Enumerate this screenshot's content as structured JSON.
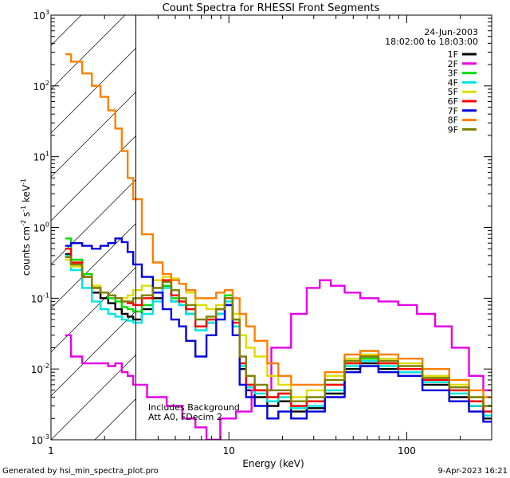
{
  "chart_data": {
    "type": "line",
    "title": "Count Spectra for RHESSI Front Segments",
    "xlabel": "Energy (keV)",
    "ylabel_base": "counts cm",
    "ylabel_sup1": "-2",
    "ylabel_mid": " s",
    "ylabel_sup2": "-1",
    "ylabel_end": " keV",
    "ylabel_sup3": "-1",
    "x_scale": "log",
    "y_scale": "log",
    "xlim": [
      1.0,
      300.0
    ],
    "ylim": [
      0.001,
      1000
    ],
    "x_ticks": [
      {
        "value": 1,
        "label": "1"
      },
      {
        "value": 10,
        "label": "10"
      },
      {
        "value": 100,
        "label": "100"
      }
    ],
    "y_ticks": [
      {
        "value": 0.001,
        "base": "10",
        "exp": "-3"
      },
      {
        "value": 0.01,
        "base": "10",
        "exp": "-2"
      },
      {
        "value": 0.1,
        "base": "10",
        "exp": "-1"
      },
      {
        "value": 1,
        "base": "10",
        "exp": "0"
      },
      {
        "value": 10,
        "base": "10",
        "exp": "1"
      },
      {
        "value": 100,
        "base": "10",
        "exp": "2"
      },
      {
        "value": 1000,
        "base": "10",
        "exp": "3"
      }
    ],
    "date": "24-Jun-2003",
    "time_range": "18:02:00 to 18:03:00",
    "attenuator_energy_keV": 3.0,
    "annotations": [
      "Includes Background",
      "Att A0, FDecim 2"
    ],
    "series": [
      {
        "name": "1F",
        "color": "#000000",
        "x": [
          1.2,
          1.4,
          1.6,
          1.8,
          2.0,
          2.2,
          2.4,
          2.6,
          2.8,
          3.0,
          3.5,
          4.0,
          4.5,
          5.0,
          5.5,
          6.0,
          7.0,
          8.0,
          9.0,
          10.0,
          11.0,
          12.0,
          13.0,
          15.0,
          18.0,
          20.0,
          25.0,
          30.0,
          40.0,
          50.0,
          60.0,
          80.0,
          100.0,
          150.0,
          200.0,
          250.0,
          290.0
        ],
        "y": [
          0.42,
          0.3,
          0.2,
          0.12,
          0.1,
          0.085,
          0.07,
          0.06,
          0.055,
          0.05,
          0.07,
          0.1,
          0.15,
          0.09,
          0.08,
          0.06,
          0.035,
          0.045,
          0.06,
          0.08,
          0.04,
          0.01,
          0.005,
          0.004,
          0.003,
          0.0035,
          0.0025,
          0.0028,
          0.0045,
          0.01,
          0.012,
          0.01,
          0.009,
          0.006,
          0.004,
          0.003,
          0.002
        ]
      },
      {
        "name": "2F",
        "color": "#e600e6",
        "x": [
          1.2,
          1.4,
          1.6,
          1.8,
          2.0,
          2.2,
          2.4,
          2.6,
          2.8,
          3.0,
          4.0,
          5.0,
          6.0,
          7.0,
          8.0,
          10.0,
          12.0,
          15.0,
          20.0,
          25.0,
          30.0,
          35.0,
          40.0,
          50.0,
          60.0,
          80.0,
          100.0,
          130.0,
          160.0,
          200.0,
          250.0,
          290.0
        ],
        "y": [
          0.03,
          0.015,
          0.012,
          0.012,
          0.012,
          0.011,
          0.012,
          0.009,
          0.008,
          0.006,
          0.004,
          0.003,
          0.002,
          0.0015,
          0.001,
          0.002,
          0.0025,
          0.005,
          0.02,
          0.06,
          0.14,
          0.18,
          0.15,
          0.12,
          0.1,
          0.09,
          0.08,
          0.06,
          0.04,
          0.02,
          0.008,
          0.005
        ]
      },
      {
        "name": "3F",
        "color": "#00dd00",
        "x": [
          1.2,
          1.4,
          1.6,
          1.8,
          2.0,
          2.2,
          2.4,
          2.6,
          2.8,
          3.0,
          3.5,
          4.0,
          4.5,
          5.0,
          5.5,
          6.0,
          7.0,
          8.0,
          9.0,
          10.0,
          11.0,
          12.0,
          13.0,
          15.0,
          18.0,
          20.0,
          25.0,
          30.0,
          40.0,
          50.0,
          60.0,
          80.0,
          100.0,
          150.0,
          200.0,
          250.0,
          290.0
        ],
        "y": [
          0.7,
          0.35,
          0.22,
          0.14,
          0.12,
          0.1,
          0.09,
          0.075,
          0.07,
          0.065,
          0.08,
          0.12,
          0.15,
          0.1,
          0.09,
          0.07,
          0.04,
          0.05,
          0.07,
          0.11,
          0.05,
          0.012,
          0.006,
          0.005,
          0.004,
          0.0045,
          0.003,
          0.0035,
          0.006,
          0.012,
          0.014,
          0.012,
          0.01,
          0.007,
          0.005,
          0.0035,
          0.0025
        ]
      },
      {
        "name": "4F",
        "color": "#00e5e5",
        "x": [
          1.2,
          1.4,
          1.6,
          1.8,
          2.0,
          2.2,
          2.4,
          2.6,
          2.8,
          3.0,
          3.5,
          4.0,
          4.5,
          5.0,
          5.5,
          6.0,
          7.0,
          8.0,
          9.0,
          10.0,
          11.0,
          12.0,
          13.0,
          15.0,
          18.0,
          20.0,
          25.0,
          30.0,
          40.0,
          50.0,
          60.0,
          80.0,
          100.0,
          150.0,
          200.0,
          250.0,
          290.0
        ],
        "y": [
          0.4,
          0.25,
          0.14,
          0.09,
          0.07,
          0.06,
          0.055,
          0.05,
          0.048,
          0.045,
          0.06,
          0.09,
          0.14,
          0.09,
          0.08,
          0.06,
          0.035,
          0.045,
          0.06,
          0.09,
          0.04,
          0.011,
          0.0055,
          0.0045,
          0.0035,
          0.004,
          0.0028,
          0.003,
          0.005,
          0.011,
          0.013,
          0.011,
          0.009,
          0.0065,
          0.0045,
          0.003,
          0.0022
        ]
      },
      {
        "name": "5F",
        "color": "#dddd00",
        "x": [
          1.2,
          1.4,
          1.6,
          1.8,
          2.0,
          2.2,
          2.4,
          2.6,
          2.8,
          3.0,
          3.5,
          4.0,
          4.5,
          5.0,
          5.5,
          6.0,
          7.0,
          8.0,
          9.0,
          10.0,
          11.0,
          12.0,
          13.0,
          15.0,
          18.0,
          20.0,
          25.0,
          30.0,
          40.0,
          50.0,
          60.0,
          80.0,
          100.0,
          150.0,
          200.0,
          250.0,
          290.0
        ],
        "y": [
          0.35,
          0.28,
          0.2,
          0.15,
          0.12,
          0.11,
          0.1,
          0.1,
          0.11,
          0.13,
          0.15,
          0.18,
          0.2,
          0.19,
          0.16,
          0.12,
          0.08,
          0.07,
          0.08,
          0.1,
          0.06,
          0.03,
          0.02,
          0.015,
          0.008,
          0.006,
          0.004,
          0.005,
          0.008,
          0.014,
          0.016,
          0.014,
          0.012,
          0.008,
          0.006,
          0.004,
          0.003
        ]
      },
      {
        "name": "6F",
        "color": "#ff0000",
        "x": [
          1.2,
          1.4,
          1.6,
          1.8,
          2.0,
          2.2,
          2.4,
          2.6,
          2.8,
          3.0,
          3.5,
          4.0,
          4.5,
          5.0,
          5.5,
          6.0,
          7.0,
          8.0,
          9.0,
          10.0,
          11.0,
          12.0,
          13.0,
          15.0,
          18.0,
          20.0,
          25.0,
          30.0,
          40.0,
          50.0,
          60.0,
          80.0,
          100.0,
          150.0,
          200.0,
          250.0,
          290.0
        ],
        "y": [
          0.5,
          0.32,
          0.2,
          0.14,
          0.12,
          0.11,
          0.1,
          0.09,
          0.085,
          0.08,
          0.1,
          0.14,
          0.18,
          0.11,
          0.09,
          0.07,
          0.04,
          0.05,
          0.07,
          0.1,
          0.045,
          0.012,
          0.006,
          0.005,
          0.004,
          0.0045,
          0.003,
          0.0035,
          0.006,
          0.012,
          0.015,
          0.012,
          0.01,
          0.007,
          0.005,
          0.0035,
          0.0025
        ]
      },
      {
        "name": "7F",
        "color": "#0000dd",
        "x": [
          1.2,
          1.4,
          1.6,
          1.8,
          2.0,
          2.2,
          2.4,
          2.6,
          2.8,
          3.0,
          3.5,
          4.0,
          4.5,
          5.0,
          5.5,
          6.0,
          7.0,
          8.0,
          9.0,
          10.0,
          11.0,
          12.0,
          13.0,
          15.0,
          18.0,
          20.0,
          25.0,
          30.0,
          40.0,
          50.0,
          60.0,
          80.0,
          100.0,
          150.0,
          200.0,
          250.0,
          290.0
        ],
        "y": [
          0.55,
          0.6,
          0.55,
          0.5,
          0.55,
          0.6,
          0.7,
          0.62,
          0.45,
          0.3,
          0.2,
          0.12,
          0.07,
          0.05,
          0.04,
          0.025,
          0.015,
          0.03,
          0.05,
          0.08,
          0.03,
          0.006,
          0.004,
          0.003,
          0.002,
          0.0025,
          0.002,
          0.0025,
          0.004,
          0.009,
          0.011,
          0.009,
          0.008,
          0.005,
          0.0035,
          0.0025,
          0.0018
        ]
      },
      {
        "name": "8F",
        "color": "#ff7f00",
        "x": [
          1.2,
          1.4,
          1.6,
          1.8,
          2.0,
          2.2,
          2.4,
          2.6,
          2.8,
          3.0,
          3.5,
          4.0,
          4.5,
          5.0,
          5.5,
          6.0,
          7.0,
          8.0,
          9.0,
          10.0,
          11.0,
          12.0,
          13.0,
          15.0,
          18.0,
          20.0,
          25.0,
          30.0,
          40.0,
          50.0,
          60.0,
          80.0,
          100.0,
          150.0,
          200.0,
          250.0,
          290.0
        ],
        "y": [
          280,
          220,
          150,
          100,
          70,
          45,
          25,
          12,
          5,
          2.5,
          0.8,
          0.32,
          0.22,
          0.18,
          0.16,
          0.13,
          0.1,
          0.1,
          0.12,
          0.13,
          0.1,
          0.06,
          0.04,
          0.025,
          0.012,
          0.008,
          0.006,
          0.006,
          0.009,
          0.016,
          0.018,
          0.016,
          0.014,
          0.01,
          0.007,
          0.005,
          0.004
        ]
      },
      {
        "name": "9F",
        "color": "#808000",
        "x": [
          1.2,
          1.4,
          1.6,
          1.8,
          2.0,
          2.2,
          2.4,
          2.6,
          2.8,
          3.0,
          3.5,
          4.0,
          4.5,
          5.0,
          5.5,
          6.0,
          7.0,
          8.0,
          9.0,
          10.0,
          11.0,
          12.0,
          13.0,
          15.0,
          18.0,
          20.0,
          25.0,
          30.0,
          40.0,
          50.0,
          60.0,
          80.0,
          100.0,
          150.0,
          200.0,
          250.0,
          290.0
        ],
        "y": [
          0.38,
          0.3,
          0.2,
          0.14,
          0.12,
          0.11,
          0.1,
          0.09,
          0.09,
          0.1,
          0.11,
          0.14,
          0.17,
          0.13,
          0.1,
          0.08,
          0.05,
          0.055,
          0.07,
          0.1,
          0.05,
          0.015,
          0.008,
          0.006,
          0.005,
          0.005,
          0.0035,
          0.004,
          0.007,
          0.013,
          0.015,
          0.013,
          0.011,
          0.0075,
          0.0055,
          0.004,
          0.003
        ]
      }
    ]
  },
  "footer": {
    "left": "Generated by hsi_min_spectra_plot.pro",
    "right": "9-Apr-2023 16:21"
  }
}
